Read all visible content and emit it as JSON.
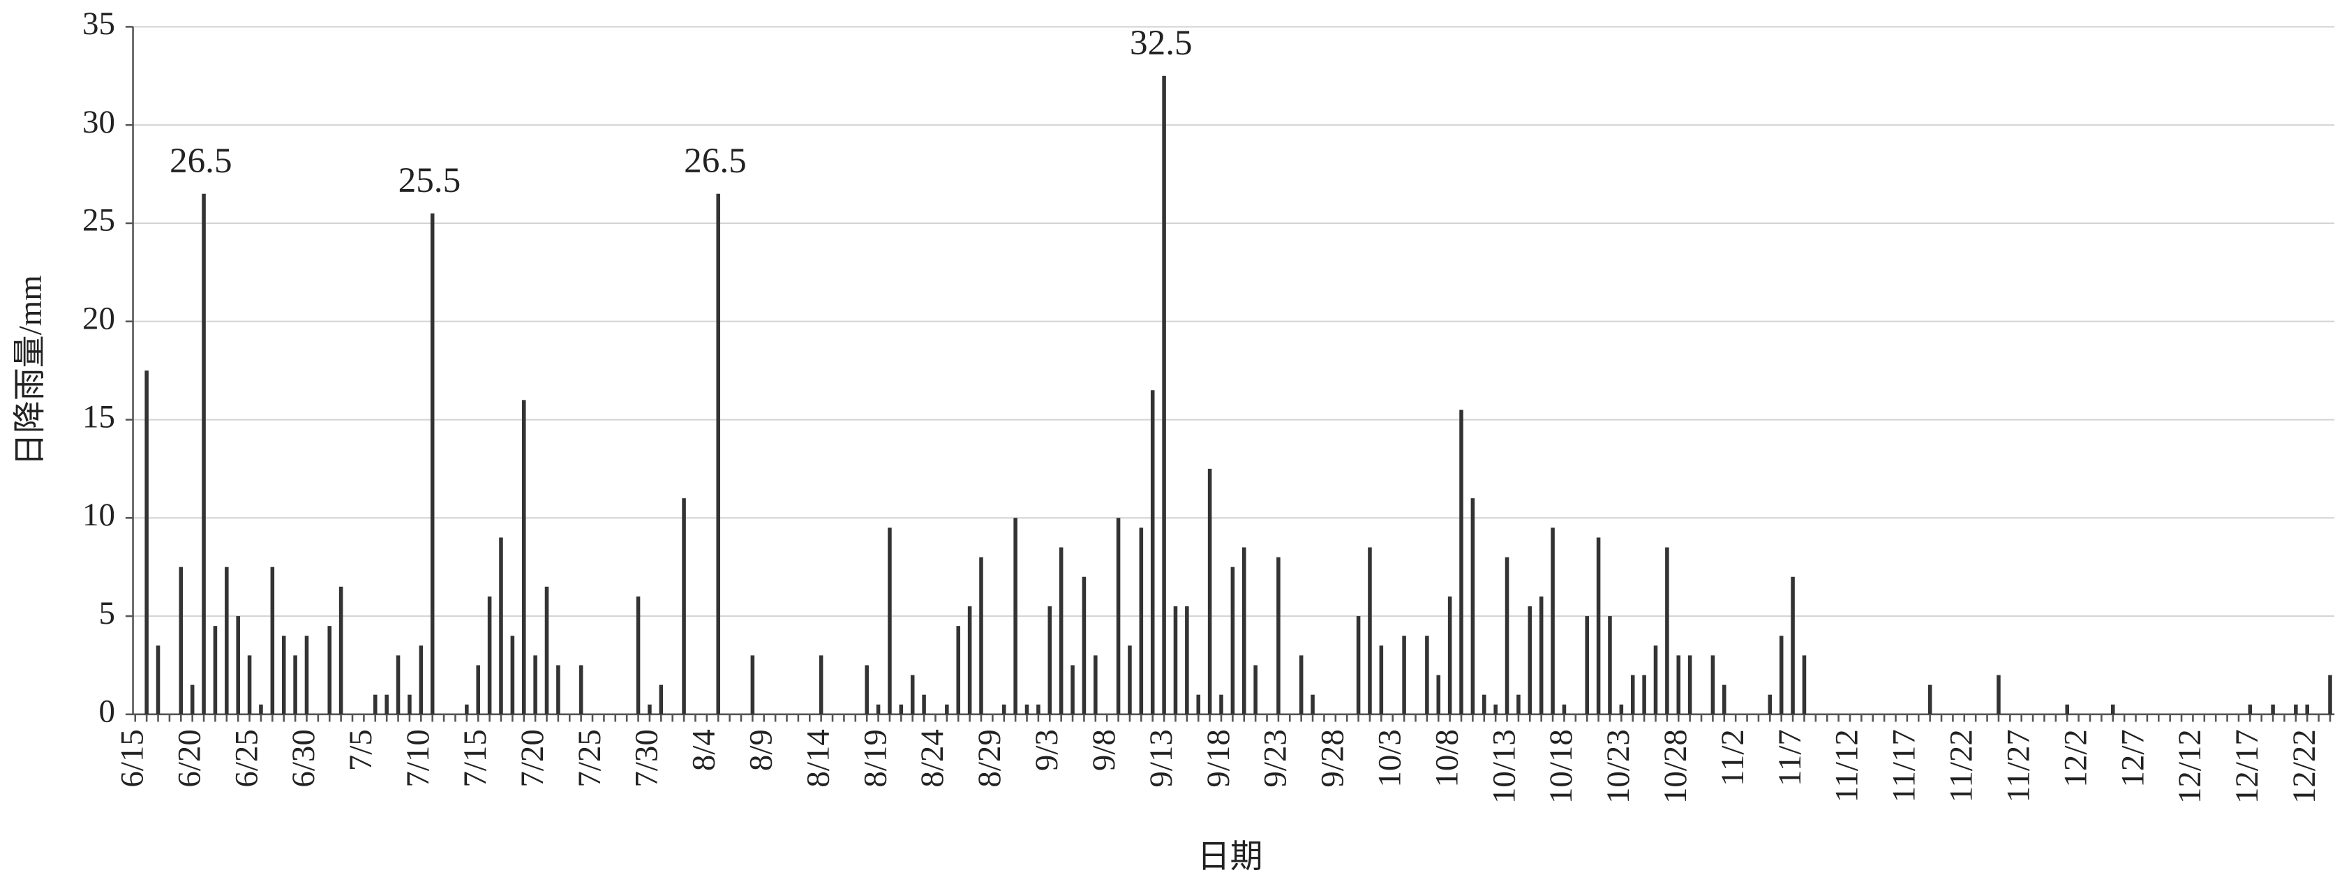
{
  "chart_data": {
    "type": "bar",
    "y_label": "日降雨量/mm",
    "x_label": "日期",
    "color": "#333333",
    "grid": true,
    "ylim": [
      0,
      35
    ],
    "yticks": [
      0,
      5,
      10,
      15,
      20,
      25,
      30,
      35
    ],
    "categories": [
      "6/15",
      null,
      null,
      null,
      null,
      "6/20",
      null,
      null,
      null,
      null,
      "6/25",
      null,
      null,
      null,
      null,
      "6/30",
      null,
      null,
      null,
      null,
      "7/5",
      null,
      null,
      null,
      null,
      "7/10",
      null,
      null,
      null,
      null,
      "7/15",
      null,
      null,
      null,
      null,
      "7/20",
      null,
      null,
      null,
      null,
      "7/25",
      null,
      null,
      null,
      null,
      "7/30",
      null,
      null,
      null,
      null,
      "8/4",
      null,
      null,
      null,
      null,
      "8/9",
      null,
      null,
      null,
      null,
      "8/14",
      null,
      null,
      null,
      null,
      "8/19",
      null,
      null,
      null,
      null,
      "8/24",
      null,
      null,
      null,
      null,
      "8/29",
      null,
      null,
      null,
      null,
      "9/3",
      null,
      null,
      null,
      null,
      "9/8",
      null,
      null,
      null,
      null,
      "9/13",
      null,
      null,
      null,
      null,
      "9/18",
      null,
      null,
      null,
      null,
      "9/23",
      null,
      null,
      null,
      null,
      "9/28",
      null,
      null,
      null,
      null,
      "10/3",
      null,
      null,
      null,
      null,
      "10/8",
      null,
      null,
      null,
      null,
      "10/13",
      null,
      null,
      null,
      null,
      "10/18",
      null,
      null,
      null,
      null,
      "10/23",
      null,
      null,
      null,
      null,
      "10/28",
      null,
      null,
      null,
      null,
      "11/2",
      null,
      null,
      null,
      null,
      "11/7",
      null,
      null,
      null,
      null,
      "11/12",
      null,
      null,
      null,
      null,
      "11/17",
      null,
      null,
      null,
      null,
      "11/22",
      null,
      null,
      null,
      null,
      "11/27",
      null,
      null,
      null,
      null,
      "12/2",
      null,
      null,
      null,
      null,
      "12/7",
      null,
      null,
      null,
      null,
      "12/12",
      null,
      null,
      null,
      null,
      "12/17",
      null,
      null,
      null,
      null,
      "12/22",
      null,
      null
    ],
    "values": [
      0,
      17.5,
      3.5,
      0,
      7.5,
      1.5,
      26.5,
      4.5,
      7.5,
      5,
      3,
      0.5,
      7.5,
      4,
      3,
      4,
      0,
      4.5,
      6.5,
      0,
      0,
      1,
      1,
      3,
      1,
      3.5,
      25.5,
      0,
      0,
      0.5,
      2.5,
      6,
      9,
      4,
      16,
      3,
      6.5,
      2.5,
      0,
      2.5,
      0,
      0,
      0,
      0,
      6,
      0.5,
      1.5,
      0,
      11,
      0,
      0,
      26.5,
      0,
      0,
      3,
      0,
      0,
      0,
      0,
      0,
      3,
      0,
      0,
      0,
      2.5,
      0.5,
      9.5,
      0.5,
      2,
      1,
      0,
      0.5,
      4.5,
      5.5,
      8,
      0,
      0.5,
      10,
      0.5,
      0.5,
      5.5,
      8.5,
      2.5,
      7,
      3,
      0,
      10,
      3.5,
      9.5,
      16.5,
      32.5,
      5.5,
      5.5,
      1,
      12.5,
      1,
      7.5,
      8.5,
      2.5,
      0,
      8,
      0,
      3,
      1,
      0,
      0,
      0,
      5,
      8.5,
      3.5,
      0,
      4,
      0,
      4,
      2,
      6,
      15.5,
      11,
      1,
      0.5,
      8,
      1,
      5.5,
      6,
      9.5,
      0.5,
      0,
      5,
      9,
      5,
      0.5,
      2,
      2,
      3.5,
      8.5,
      3,
      3,
      0,
      3,
      1.5,
      0,
      0,
      0,
      1,
      4,
      7,
      3,
      0,
      0,
      0,
      0,
      0,
      0,
      0,
      0,
      0,
      0,
      1.5,
      0,
      0,
      0,
      0,
      0,
      2,
      0,
      0,
      0,
      0,
      0,
      0.5,
      0,
      0,
      0,
      0.5,
      0,
      0,
      0,
      0,
      0,
      0,
      0,
      0,
      0,
      0,
      0,
      0.5,
      0,
      0.5,
      0,
      0.5,
      0.5,
      0,
      2
    ],
    "value_labels": [
      null,
      null,
      null,
      null,
      null,
      null,
      "26.5",
      null,
      null,
      null,
      null,
      null,
      null,
      null,
      null,
      null,
      null,
      null,
      null,
      null,
      null,
      null,
      null,
      null,
      null,
      null,
      "25.5",
      null,
      null,
      null,
      null,
      null,
      null,
      null,
      null,
      null,
      null,
      null,
      null,
      null,
      null,
      null,
      null,
      null,
      null,
      null,
      null,
      null,
      null,
      null,
      null,
      "26.5",
      null,
      null,
      null,
      null,
      null,
      null,
      null,
      null,
      null,
      null,
      null,
      null,
      null,
      null,
      null,
      null,
      null,
      null,
      null,
      null,
      null,
      null,
      null,
      null,
      null,
      null,
      null,
      null,
      null,
      null,
      null,
      null,
      null,
      null,
      null,
      null,
      null,
      null,
      "32.5",
      null,
      null,
      null,
      null,
      null,
      null,
      null,
      null,
      null,
      null,
      null,
      null,
      null,
      null,
      null,
      null,
      null,
      null,
      null,
      null,
      null,
      null,
      null,
      null,
      null,
      null,
      null,
      null,
      null,
      null,
      null,
      null,
      null,
      null,
      null,
      null,
      null,
      null,
      null,
      null,
      null,
      null,
      null,
      null,
      null,
      null,
      null,
      null,
      null,
      null,
      null,
      null,
      null,
      null,
      null,
      null,
      null,
      null,
      null,
      null,
      null,
      null,
      null,
      null,
      null,
      null,
      null,
      null,
      null,
      null,
      null,
      null,
      null,
      null,
      null,
      null,
      null,
      null,
      null,
      null,
      null,
      null,
      null,
      null,
      null,
      null,
      null,
      null,
      null,
      null,
      null,
      null,
      null,
      null,
      null,
      null,
      null,
      null,
      null,
      null,
      null,
      null
    ]
  }
}
